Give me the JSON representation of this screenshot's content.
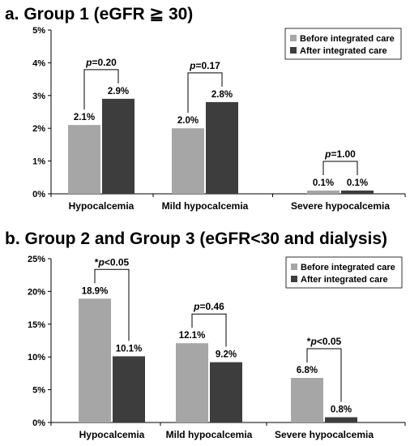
{
  "chart_data": [
    {
      "type": "bar",
      "title": "a. Group 1 (eGFR ≧ 30)",
      "categories": [
        "Hypocalcemia",
        "Mild hypocalcemia",
        "Severe hypocalcemia"
      ],
      "series": [
        {
          "name": "Before integrated care",
          "values": [
            2.1,
            2.0,
            0.1
          ],
          "labels": [
            "2.1%",
            "2.0%",
            "0.1%"
          ],
          "color": "#a6a6a6"
        },
        {
          "name": "After integrated care",
          "values": [
            2.9,
            2.8,
            0.1
          ],
          "labels": [
            "2.9%",
            "2.8%",
            "0.1%"
          ],
          "color": "#3d3d3d"
        }
      ],
      "p_values": [
        {
          "prefix": "",
          "p": "p",
          "rest": "=0.20"
        },
        {
          "prefix": "",
          "p": "p",
          "rest": "=0.17"
        },
        {
          "prefix": "",
          "p": "p",
          "rest": "=1.00"
        }
      ],
      "ylim": [
        0,
        5
      ],
      "yticks": [
        0,
        1,
        2,
        3,
        4,
        5
      ],
      "ytick_labels": [
        "0%",
        "1%",
        "2%",
        "3%",
        "4%",
        "5%"
      ],
      "xlabel": "",
      "ylabel": "",
      "legend": "top-right",
      "grid": false
    },
    {
      "type": "bar",
      "title": "b. Group 2 and Group 3 (eGFR<30 and dialysis)",
      "categories": [
        "Hypocalcemia",
        "Mild hypocalcemia",
        "Severe hypocalcemia"
      ],
      "series": [
        {
          "name": "Before integrated care",
          "values": [
            18.9,
            12.1,
            6.8
          ],
          "labels": [
            "18.9%",
            "12.1%",
            "6.8%"
          ],
          "color": "#a6a6a6"
        },
        {
          "name": "After integrated care",
          "values": [
            10.1,
            9.2,
            0.8
          ],
          "labels": [
            "10.1%",
            "9.2%",
            "0.8%"
          ],
          "color": "#3d3d3d"
        }
      ],
      "p_values": [
        {
          "prefix": "*",
          "p": "p",
          "rest": "<0.05"
        },
        {
          "prefix": "",
          "p": "p",
          "rest": "=0.46"
        },
        {
          "prefix": "*",
          "p": "p",
          "rest": "<0.05"
        }
      ],
      "ylim": [
        0,
        25
      ],
      "yticks": [
        0,
        5,
        10,
        15,
        20,
        25
      ],
      "ytick_labels": [
        "0%",
        "5%",
        "10%",
        "15%",
        "20%",
        "25%"
      ],
      "xlabel": "",
      "ylabel": "",
      "legend": "top-right",
      "grid": false
    }
  ]
}
